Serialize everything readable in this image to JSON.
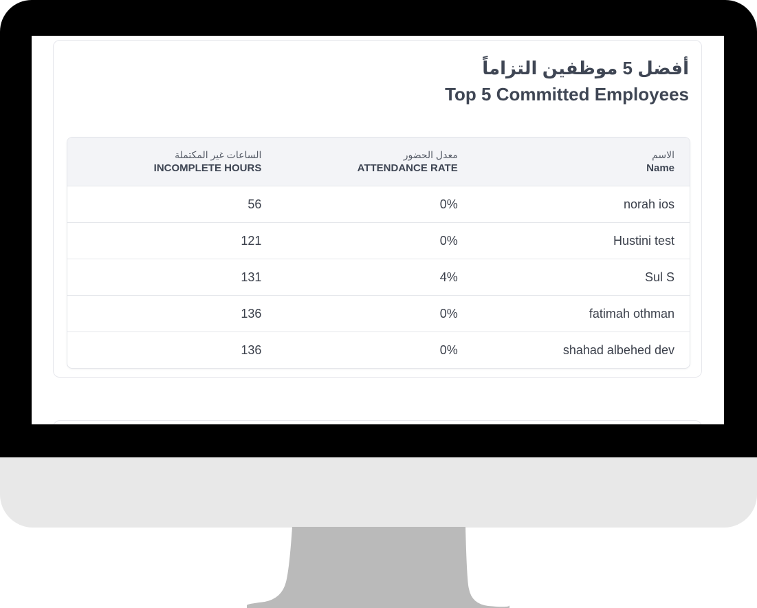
{
  "card": {
    "title_ar": "أفضل 5 موظفين التزاماً",
    "title_en": "Top 5 Committed Employees"
  },
  "table": {
    "columns": [
      {
        "ar": "الساعات غير المكتملة",
        "en": "INCOMPLETE HOURS"
      },
      {
        "ar": "معدل الحضور",
        "en": "ATTENDANCE RATE"
      },
      {
        "ar": "الاسم",
        "en": "Name"
      }
    ],
    "rows": [
      {
        "hours": "56",
        "rate": "0%",
        "name": "norah ios"
      },
      {
        "hours": "121",
        "rate": "0%",
        "name": "Hustini test"
      },
      {
        "hours": "131",
        "rate": "4%",
        "name": "Sul S"
      },
      {
        "hours": "136",
        "rate": "0%",
        "name": "fatimah othman"
      },
      {
        "hours": "136",
        "rate": "0%",
        "name": "shahad albehed dev"
      }
    ]
  },
  "colors": {
    "bezel": "#000000",
    "chin": "#e8e8e8",
    "stand": "#bababa",
    "text": "#3f4654",
    "header_bg": "#f3f4f7"
  }
}
